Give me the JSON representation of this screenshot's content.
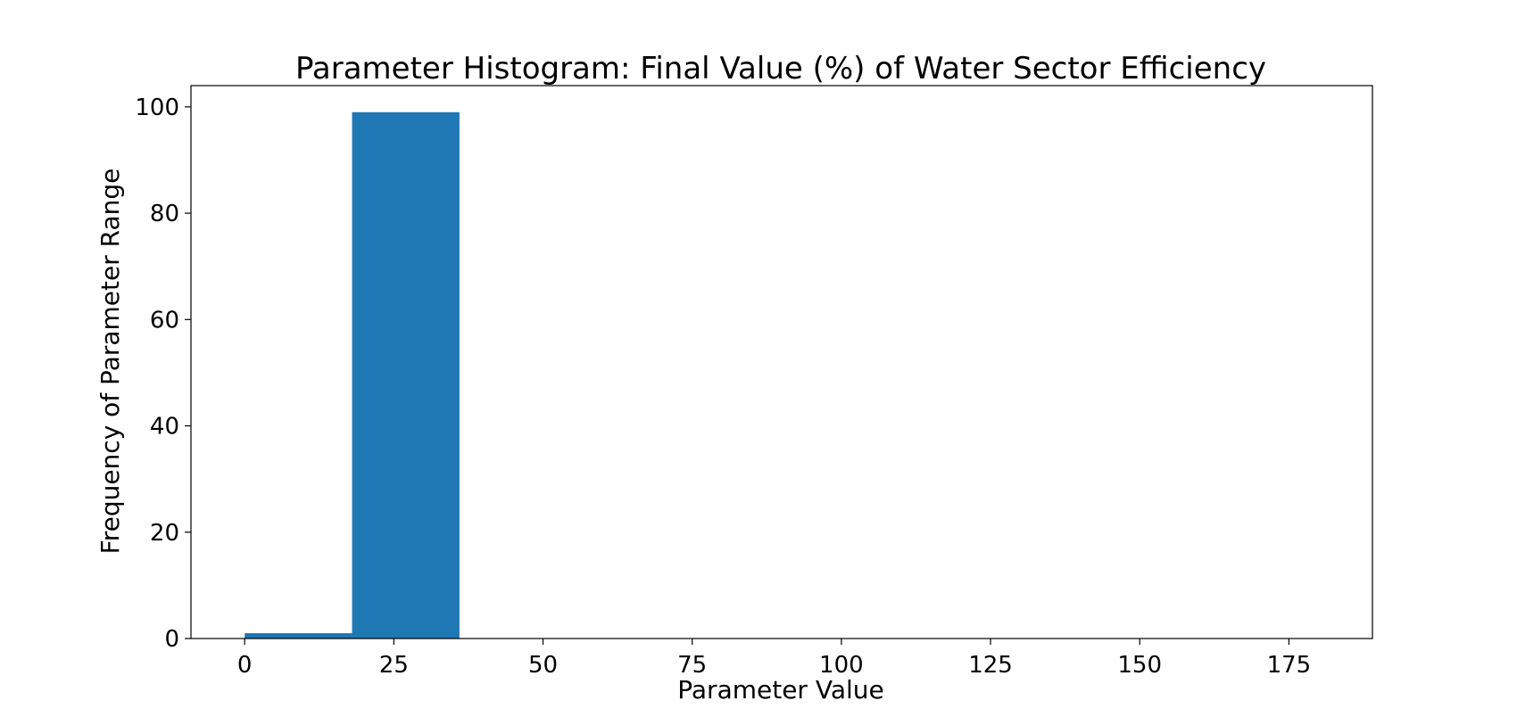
{
  "chart_data": {
    "type": "bar",
    "title": "Parameter Histogram: Final Value (%) of Water Sector Efficiency",
    "xlabel": "Parameter Value",
    "ylabel": "Frequency of Parameter Range",
    "xlim": [
      -9,
      189
    ],
    "ylim": [
      0,
      104
    ],
    "x_ticks": [
      0,
      25,
      50,
      75,
      100,
      125,
      150,
      175
    ],
    "y_ticks": [
      0,
      20,
      40,
      60,
      80,
      100
    ],
    "bins": [
      {
        "start": 0,
        "end": 18,
        "count": 1
      },
      {
        "start": 18,
        "end": 36,
        "count": 99
      }
    ],
    "bar_color": "#1f77b4",
    "grid": false,
    "legend": "none"
  }
}
